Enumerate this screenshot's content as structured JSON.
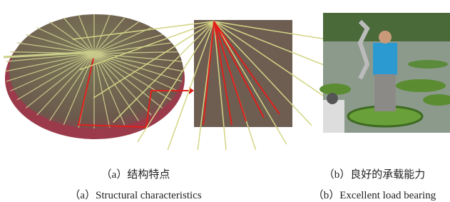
{
  "panels": [
    {
      "caption_zh": "（a）结构特点",
      "caption_en": "（a）Structural characteristics"
    },
    {
      "caption_zh": "（b）良好的承载能力",
      "caption_en": "（b）Excellent load bearing"
    }
  ]
}
